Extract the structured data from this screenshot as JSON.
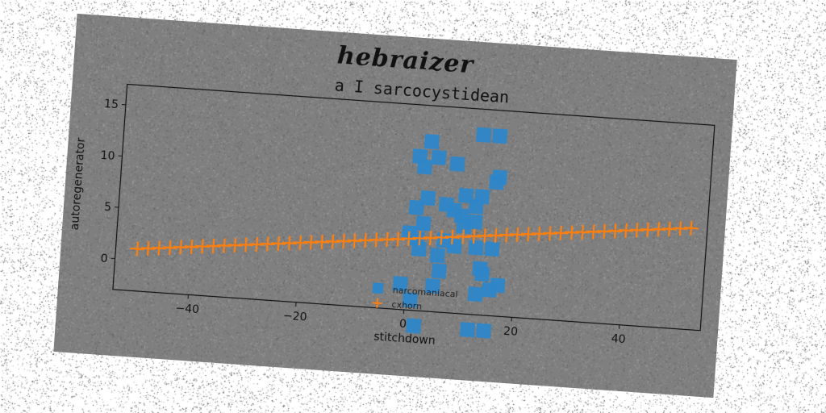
{
  "figure": {
    "suptitle": "hebraizer",
    "background": "#7f7f7f"
  },
  "chart_data": {
    "type": "scatter",
    "title": "a I sarcocystidean",
    "xlabel": "stitchdown",
    "ylabel": "autoregenerator",
    "xlim": [
      -54,
      55
    ],
    "ylim": [
      -3,
      17
    ],
    "xticks": [
      -40,
      -20,
      0,
      20,
      40
    ],
    "yticks": [
      0,
      5,
      10,
      15
    ],
    "grid": false,
    "legend_position": "lower-center",
    "series": [
      {
        "name": "narcomaniacal",
        "marker": "square",
        "color": "#2e86c8",
        "points": [
          [
            12.5,
            14.5
          ],
          [
            15.5,
            14.5
          ],
          [
            3,
            13.5
          ],
          [
            1,
            12
          ],
          [
            4.5,
            12
          ],
          [
            8,
            11.5
          ],
          [
            2,
            11
          ],
          [
            16,
            10.5
          ],
          [
            15.5,
            10
          ],
          [
            10,
            8.5
          ],
          [
            13,
            8.5
          ],
          [
            3,
            8
          ],
          [
            6.5,
            7.5
          ],
          [
            12,
            7.5
          ],
          [
            1,
            7
          ],
          [
            8,
            7
          ],
          [
            9.5,
            6.5
          ],
          [
            12,
            6
          ],
          [
            2.5,
            5.5
          ],
          [
            10,
            5.5
          ],
          [
            0,
            4.5
          ],
          [
            1.5,
            4
          ],
          [
            6.5,
            4
          ],
          [
            8.5,
            3.5
          ],
          [
            12.5,
            3.5
          ],
          [
            15.5,
            3.5
          ],
          [
            2,
            3
          ],
          [
            5.5,
            2.5
          ],
          [
            13.5,
            1.5
          ],
          [
            6,
            1
          ],
          [
            14,
            1
          ],
          [
            17,
            0
          ],
          [
            -1,
            -0.5
          ],
          [
            5,
            -0.5
          ],
          [
            13,
            -1
          ],
          [
            15.5,
            -0.5
          ],
          [
            1,
            -2
          ],
          [
            12,
            -4.5
          ],
          [
            15,
            -4.5
          ],
          [
            2,
            -4.5
          ]
        ]
      },
      {
        "name": "cxhorn",
        "marker": "plus",
        "color": "#ff7f0e",
        "x_start": -50,
        "x_end": 52,
        "x_step": 2,
        "slope": 0.0566,
        "intercept": 3.93
      }
    ]
  },
  "colors": {
    "axes": "#111111",
    "text": "#111111"
  }
}
